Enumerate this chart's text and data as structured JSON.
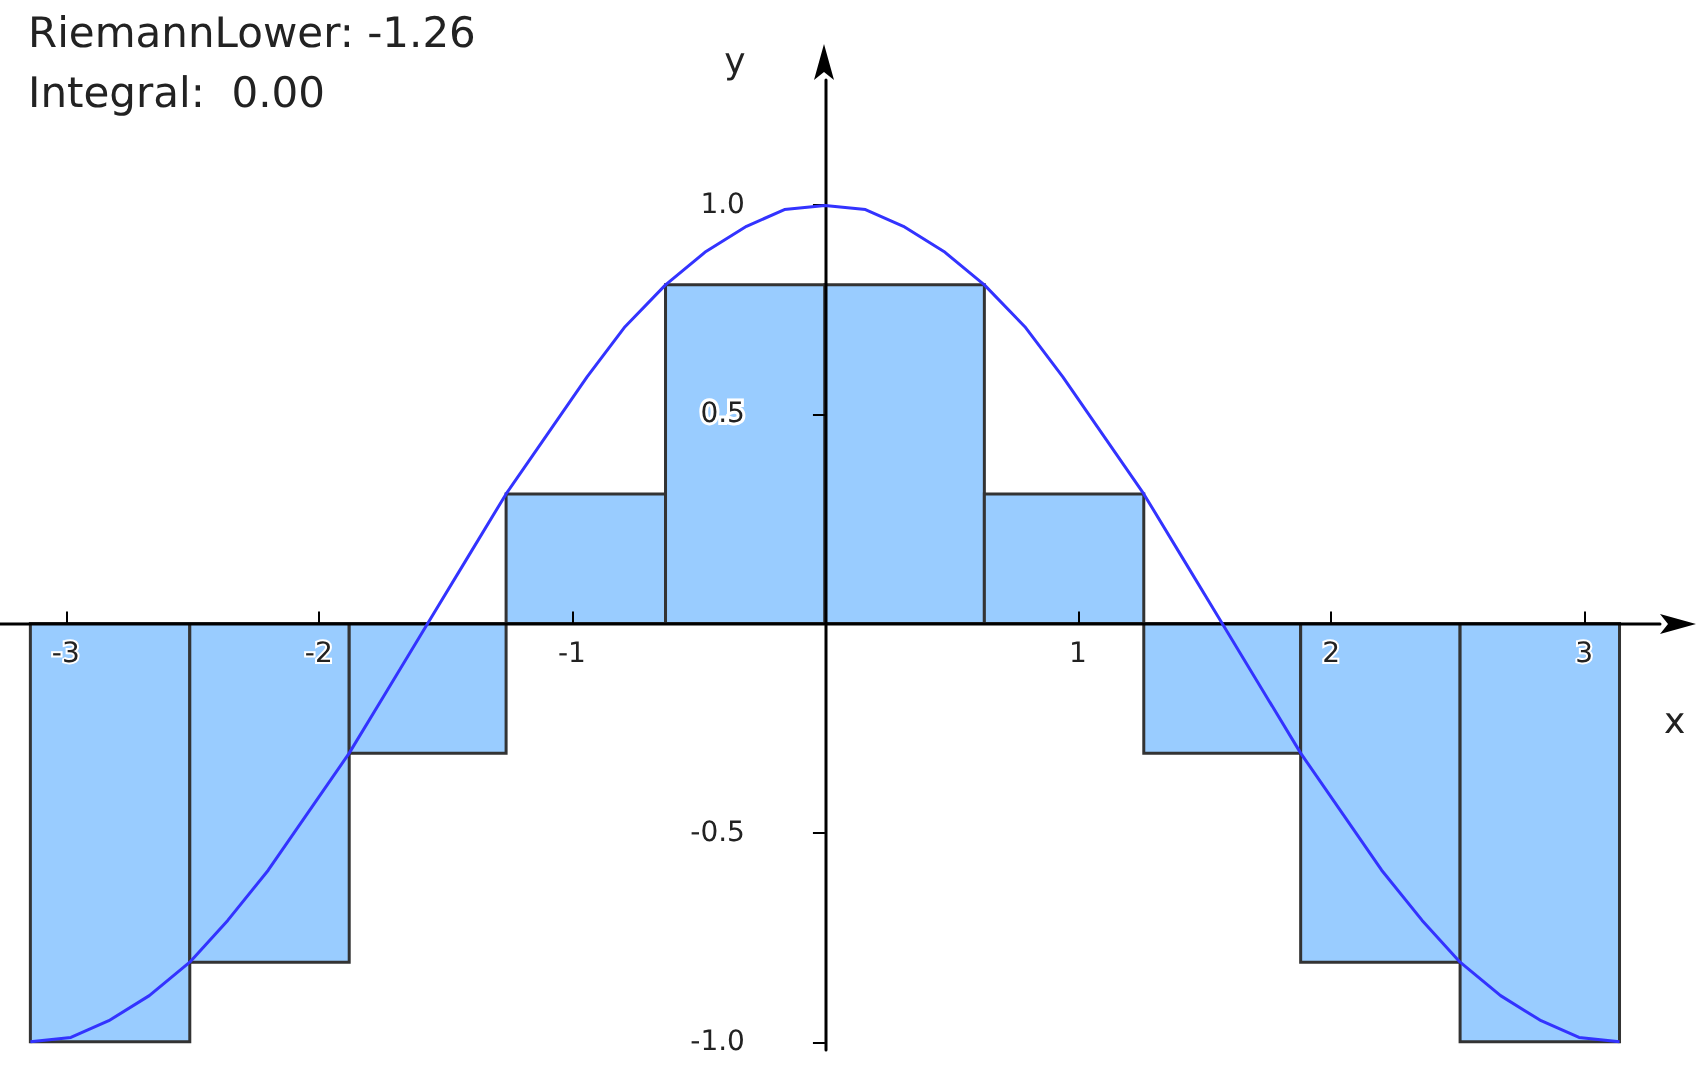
{
  "chart_data": {
    "type": "histogram",
    "xlabel": "x",
    "ylabel": "y",
    "annotations": [
      "RiemannLower: -1.26",
      "Integral:  0.00"
    ],
    "xlim": [
      -3.26,
      3.3
    ],
    "ylim": [
      -1.02,
      1.3
    ],
    "xticks": [
      -3,
      -2,
      -1,
      1,
      2,
      3
    ],
    "yticks": [
      {
        "value": -1,
        "label": "-1.0"
      },
      {
        "value": -0.5,
        "label": "-0.5"
      },
      {
        "value": 0.5,
        "label": "0.5"
      },
      {
        "value": 1,
        "label": "1.0"
      }
    ],
    "grid": false,
    "series": [
      {
        "type": "histogram",
        "color": "#99ccff",
        "bins": [
          -3.14,
          -2.51,
          -1.88,
          -1.26,
          -0.63,
          0,
          0.63,
          1.26,
          1.88,
          2.51,
          3.14
        ],
        "values": [
          -1,
          -0.81,
          -0.31,
          0.31,
          0.81,
          0.81,
          0.31,
          -0.31,
          -0.81,
          -1
        ]
      },
      {
        "type": "line",
        "color": "#3333ff",
        "x": [
          -3.14,
          -2.98,
          -2.83,
          -2.67,
          -2.51,
          -2.36,
          -2.2,
          -2.04,
          -1.88,
          -1.73,
          -1.57,
          -1.41,
          -1.26,
          -1.1,
          -0.94,
          -0.79,
          -0.63,
          -0.47,
          -0.31,
          -0.16,
          0,
          0.16,
          0.31,
          0.47,
          0.63,
          0.79,
          0.94,
          1.1,
          1.26,
          1.41,
          1.57,
          1.73,
          1.88,
          2.04,
          2.2,
          2.36,
          2.51,
          2.67,
          2.83,
          2.98,
          3.14
        ],
        "values": [
          -1,
          -0.99,
          -0.95,
          -0.89,
          -0.81,
          -0.71,
          -0.59,
          -0.45,
          -0.31,
          -0.16,
          0,
          0.16,
          0.31,
          0.45,
          0.59,
          0.71,
          0.81,
          0.89,
          0.95,
          0.99,
          1,
          0.99,
          0.95,
          0.89,
          0.81,
          0.71,
          0.59,
          0.45,
          0.31,
          0.16,
          0,
          -0.16,
          -0.31,
          -0.45,
          -0.59,
          -0.71,
          -0.81,
          -0.89,
          -0.95,
          -0.99,
          -1
        ]
      }
    ]
  }
}
